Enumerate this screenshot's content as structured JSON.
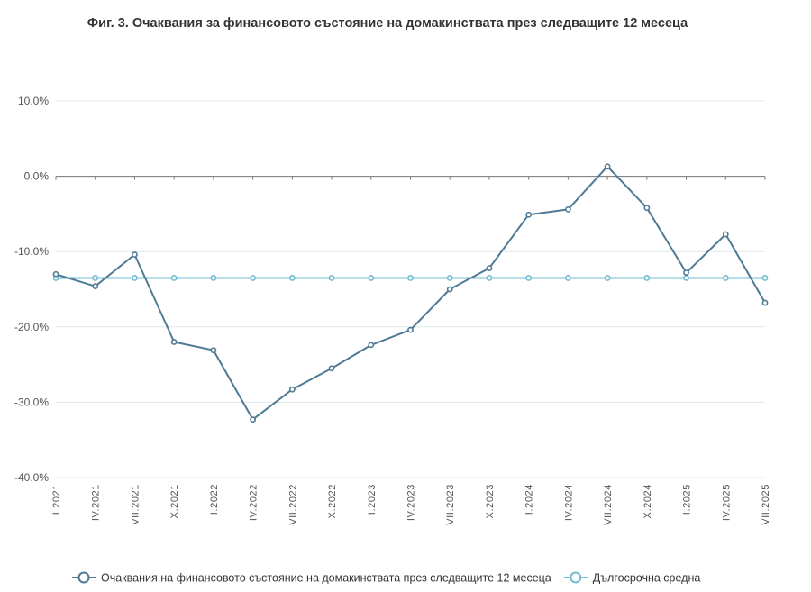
{
  "chart_data": {
    "type": "line",
    "title": "Фиг. 3. Очаквания за финансовото състояние на домакинствата през следващите 12 месеца",
    "xlabel": "",
    "ylabel": "",
    "ylim": [
      -40,
      10
    ],
    "y_ticks": [
      10,
      0,
      -10,
      -20,
      -30,
      -40
    ],
    "y_tick_labels": [
      "10.0%",
      "0.0%",
      "-10.0%",
      "-20.0%",
      "-30.0%",
      "-40.0%"
    ],
    "categories": [
      "I.2021",
      "IV.2021",
      "VII.2021",
      "X.2021",
      "I.2022",
      "IV.2022",
      "VII.2022",
      "X.2022",
      "I.2023",
      "IV.2023",
      "VII.2023",
      "X.2023",
      "I.2024",
      "IV.2024",
      "VII.2024",
      "X.2024",
      "I.2025",
      "IV.2025",
      "VII.2025"
    ],
    "series": [
      {
        "name": "Очаквания на финансовото състояние на домакинствата през следващите 12 месеца",
        "color": "#4f7a95",
        "values": [
          -13.0,
          -14.6,
          -10.4,
          -22.0,
          -23.1,
          -32.3,
          -28.3,
          -25.5,
          -22.4,
          -20.4,
          -15.0,
          -12.2,
          -5.1,
          -4.4,
          1.3,
          -4.2,
          -12.8,
          -7.7,
          -16.8
        ]
      },
      {
        "name": "Дългосрочна средна",
        "color": "#72bcd4",
        "values": [
          -13.5,
          -13.5,
          -13.5,
          -13.5,
          -13.5,
          -13.5,
          -13.5,
          -13.5,
          -13.5,
          -13.5,
          -13.5,
          -13.5,
          -13.5,
          -13.5,
          -13.5,
          -13.5,
          -13.5,
          -13.5,
          -13.5
        ]
      }
    ],
    "grid": true,
    "legend_position": "bottom"
  }
}
